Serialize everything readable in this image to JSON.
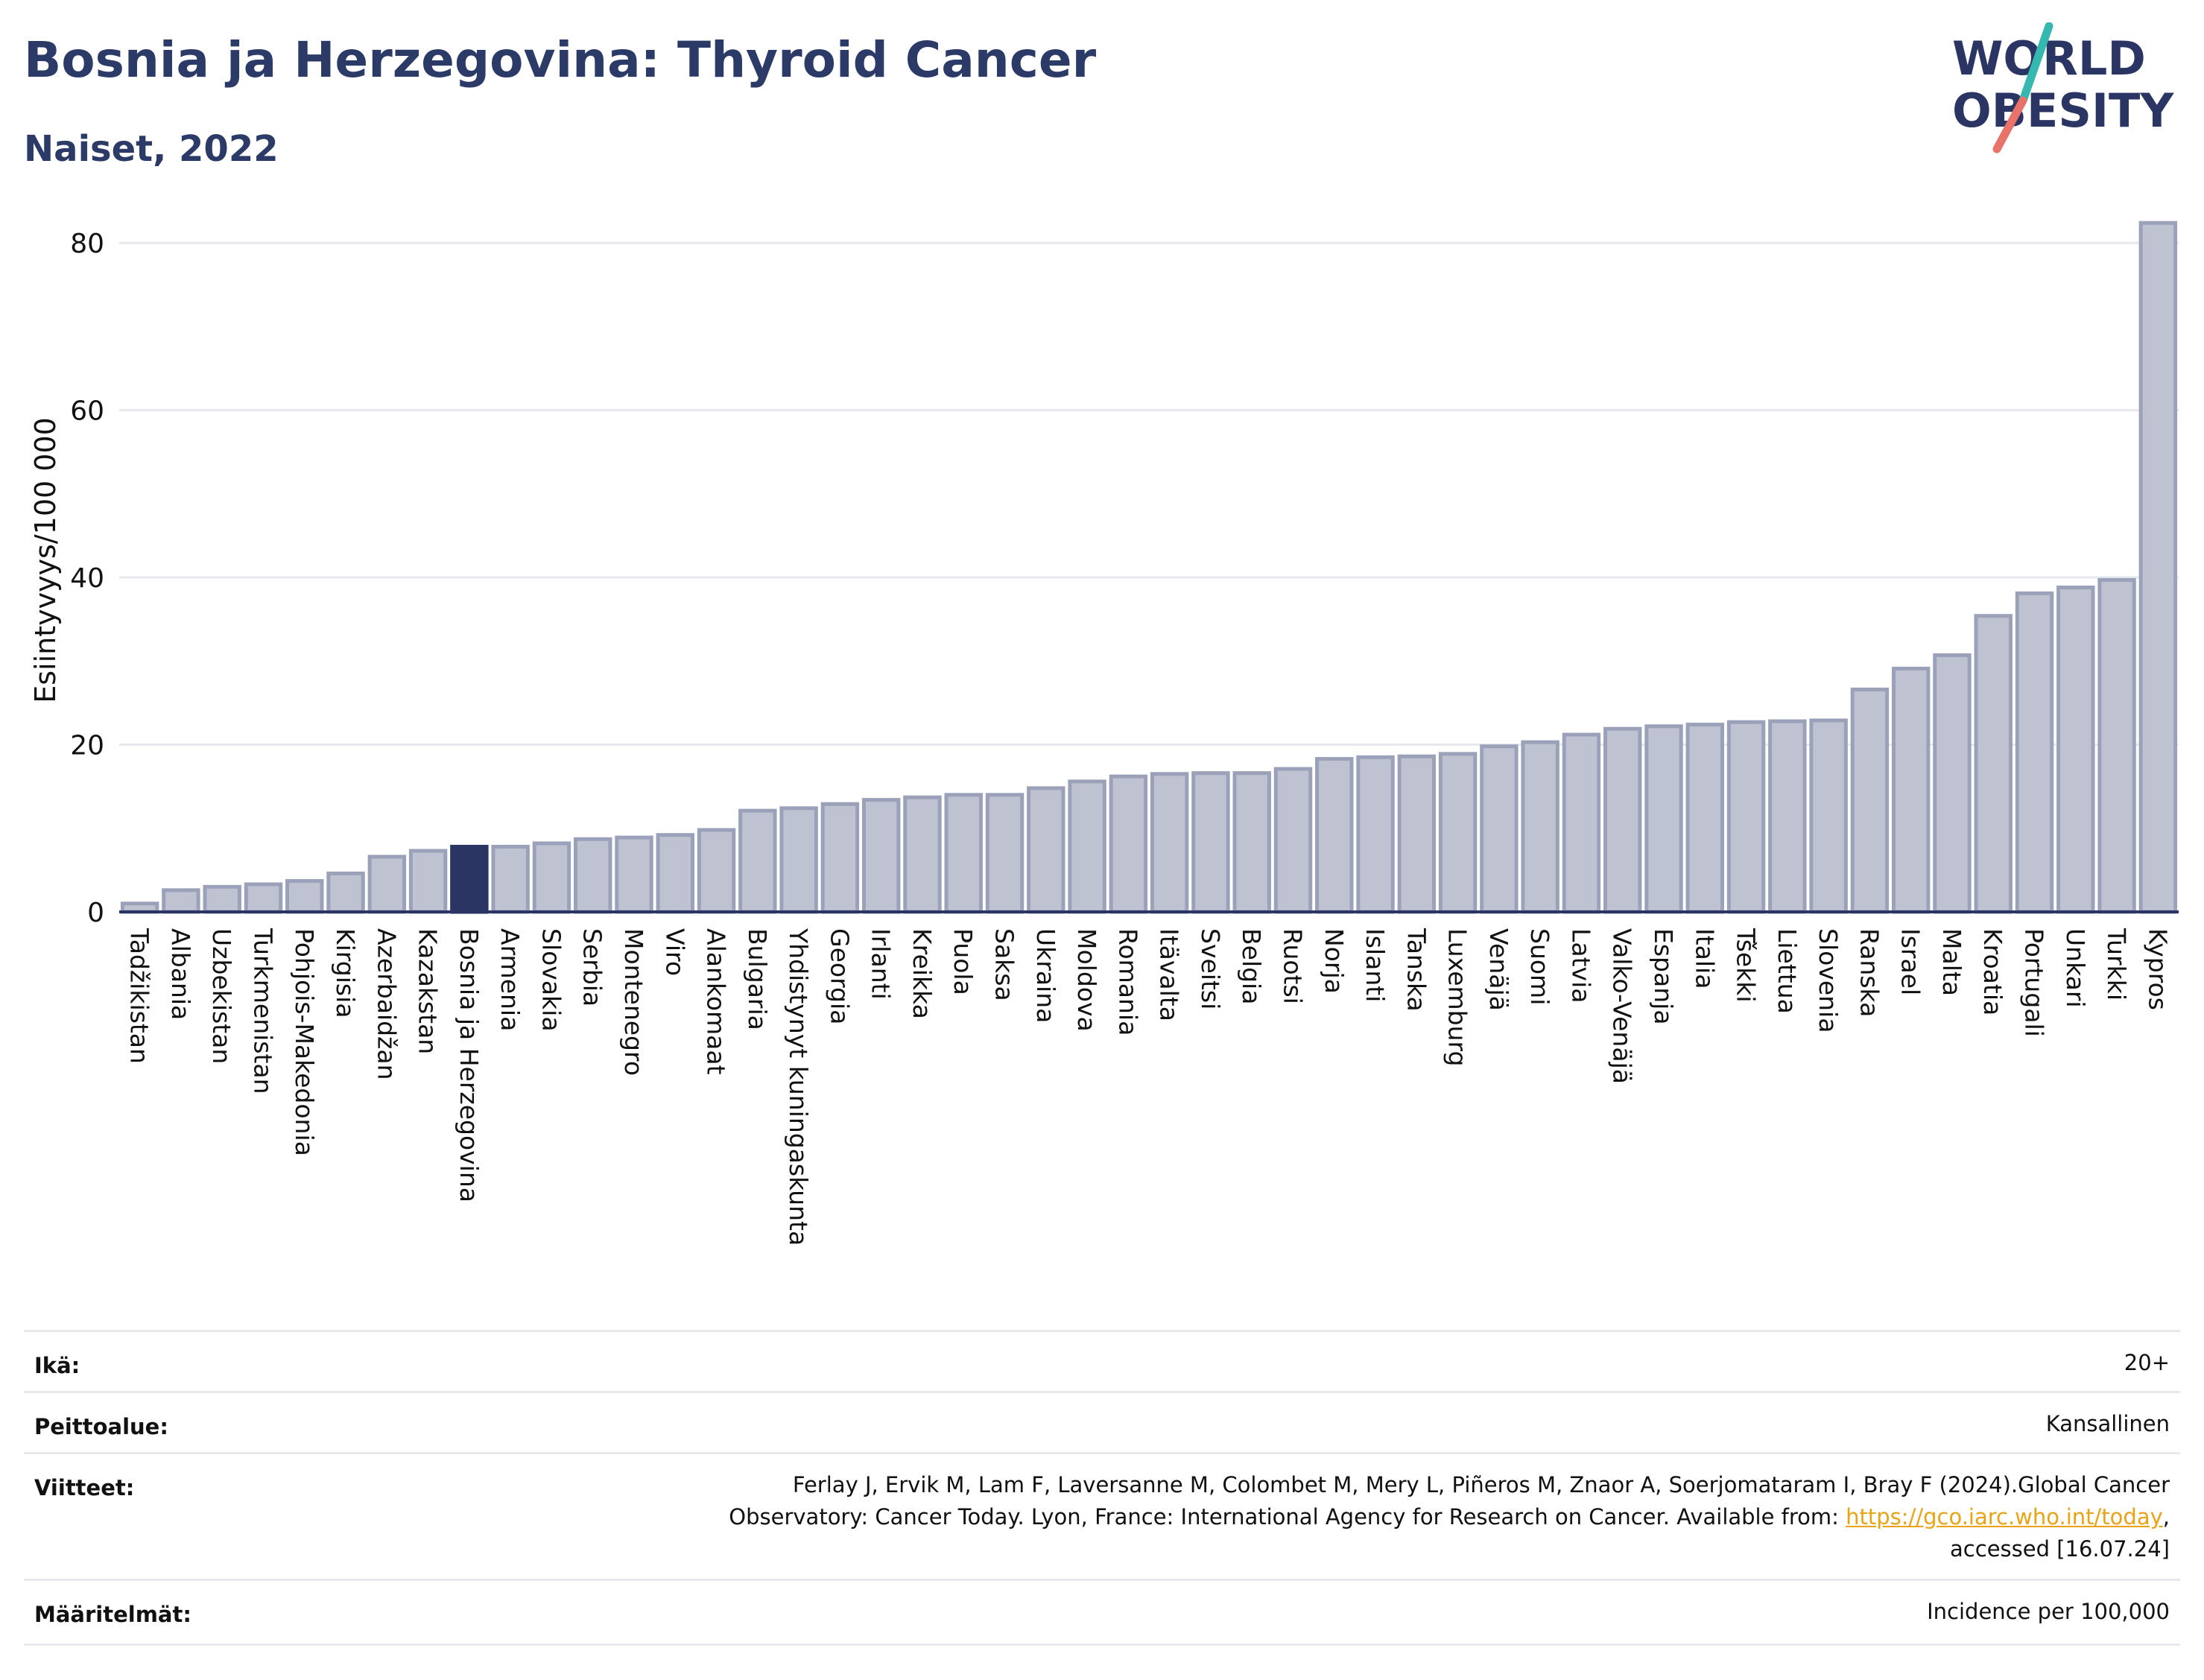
{
  "header": {
    "title": "Bosnia ja Herzegovina: Thyroid Cancer",
    "subtitle": "Naiset, 2022"
  },
  "logo": {
    "line1": "WORLD",
    "line2": "OBESITY"
  },
  "chart_data": {
    "type": "bar",
    "ylabel": "Esiintyvyys/100 000",
    "ylim": [
      0,
      85
    ],
    "yticks": [
      0,
      20,
      40,
      60,
      80
    ],
    "grid": true,
    "highlight_category": "Bosnia ja Herzegovina",
    "colors": {
      "bar": "#bfc3d1",
      "bar_edge": "#9ba1b9",
      "highlight": "#2b3563",
      "grid": "#e6e8ee",
      "axis": "#2b3563"
    },
    "categories": [
      "Tadžikistan",
      "Albania",
      "Uzbekistan",
      "Turkmenistan",
      "Pohjois-Makedonia",
      "Kirgisia",
      "Azerbaidžan",
      "Kazakstan",
      "Bosnia ja Herzegovina",
      "Armenia",
      "Slovakia",
      "Serbia",
      "Montenegro",
      "Viro",
      "Alankomaat",
      "Bulgaria",
      "Yhdistynyt kuningaskunta",
      "Georgia",
      "Irlanti",
      "Kreikka",
      "Puola",
      "Saksa",
      "Ukraina",
      "Moldova",
      "Romania",
      "Itävalta",
      "Sveitsi",
      "Belgia",
      "Ruotsi",
      "Norja",
      "Islanti",
      "Tanska",
      "Luxemburg",
      "Venäjä",
      "Suomi",
      "Latvia",
      "Valko-Venäjä",
      "Espanja",
      "Italia",
      "Tšekki",
      "Liettua",
      "Slovenia",
      "Ranska",
      "Israel",
      "Malta",
      "Kroatia",
      "Portugali",
      "Unkari",
      "Turkki",
      "Kypros"
    ],
    "values": [
      1.0,
      2.6,
      3.0,
      3.3,
      3.7,
      4.6,
      6.6,
      7.3,
      7.8,
      7.8,
      8.2,
      8.7,
      8.9,
      9.2,
      9.8,
      12.1,
      12.4,
      12.9,
      13.4,
      13.7,
      14.0,
      14.0,
      14.8,
      15.6,
      16.2,
      16.5,
      16.6,
      16.6,
      17.1,
      18.3,
      18.5,
      18.6,
      18.9,
      19.8,
      20.3,
      21.2,
      21.9,
      22.2,
      22.4,
      22.7,
      22.8,
      22.9,
      26.6,
      29.1,
      30.7,
      35.4,
      38.1,
      38.8,
      39.7,
      82.4
    ]
  },
  "meta": {
    "age_label": "Ikä:",
    "age_value": "20+",
    "coverage_label": "Peittoalue:",
    "coverage_value": "Kansallinen",
    "refs_label": "Viitteet:",
    "refs_line1": "Ferlay J, Ervik M, Lam F, Laversanne M, Colombet M, Mery L, Piñeros M, Znaor A, Soerjomataram I, Bray F (2024).Global Cancer",
    "refs_line2_prefix": "Observatory: Cancer Today. Lyon, France: International Agency for Research on Cancer. Available from: ",
    "refs_link": "https://gco.iarc.who.int/today",
    "refs_line2_suffix": ",",
    "refs_line3": "accessed [16.07.24]",
    "defs_label": "Määritelmät:",
    "defs_value": "Incidence per 100,000"
  }
}
